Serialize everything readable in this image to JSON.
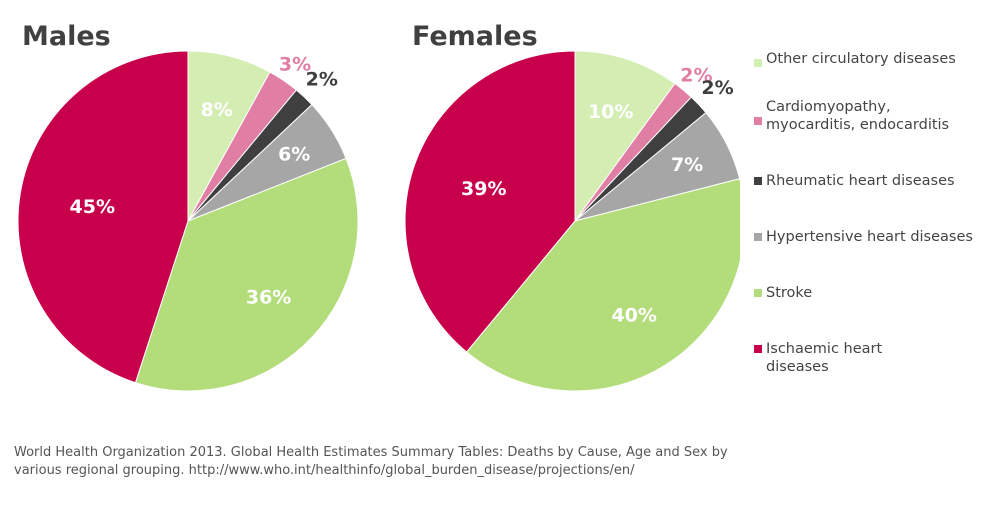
{
  "chart_data": [
    {
      "type": "pie",
      "title": "Males",
      "categories": [
        "Other circulatory diseases",
        "Cardiomyopathy, myocarditis, endocarditis",
        "Rheumatic heart diseases",
        "Hypertensive heart diseases",
        "Stroke",
        "Ischaemic heart diseases"
      ],
      "values": [
        8,
        3,
        2,
        6,
        36,
        45
      ],
      "labels": [
        "8%",
        "3%",
        "2%",
        "6%",
        "36%",
        "45%"
      ]
    },
    {
      "type": "pie",
      "title": "Females",
      "categories": [
        "Other circulatory diseases",
        "Cardiomyopathy, myocarditis, endocarditis",
        "Rheumatic heart diseases",
        "Hypertensive heart diseases",
        "Stroke",
        "Ischaemic heart diseases"
      ],
      "values": [
        10,
        2,
        2,
        7,
        40,
        39
      ],
      "labels": [
        "10%",
        "2%",
        "2%",
        "7%",
        "40%",
        "39%"
      ]
    }
  ],
  "legend": {
    "placement": "right",
    "items": [
      {
        "lines": [
          "Other circulatory diseases"
        ],
        "color": "#d4edb2"
      },
      {
        "lines": [
          "Cardiomyopathy,",
          "myocarditis, endocarditis"
        ],
        "color": "#e07fa3"
      },
      {
        "lines": [
          "Rheumatic heart diseases"
        ],
        "color": "#3f3f3f"
      },
      {
        "lines": [
          "Hypertensive heart diseases"
        ],
        "color": "#a6a6a6"
      },
      {
        "lines": [
          "Stroke"
        ],
        "color": "#b3dc7b"
      },
      {
        "lines": [
          "Ischaemic heart",
          "diseases"
        ],
        "color": "#c8004b"
      }
    ]
  },
  "label_colors": [
    "#ffffff",
    "#e07fa3",
    "#3f3f3f",
    "#ffffff",
    "#ffffff",
    "#ffffff"
  ],
  "source": {
    "line1": "World Health Organization 2013. Global Health Estimates Summary Tables: Deaths by Cause, Age and Sex by",
    "line2": "various regional grouping. http://www.who.int/healthinfo/global_burden_disease/projections/en/"
  }
}
